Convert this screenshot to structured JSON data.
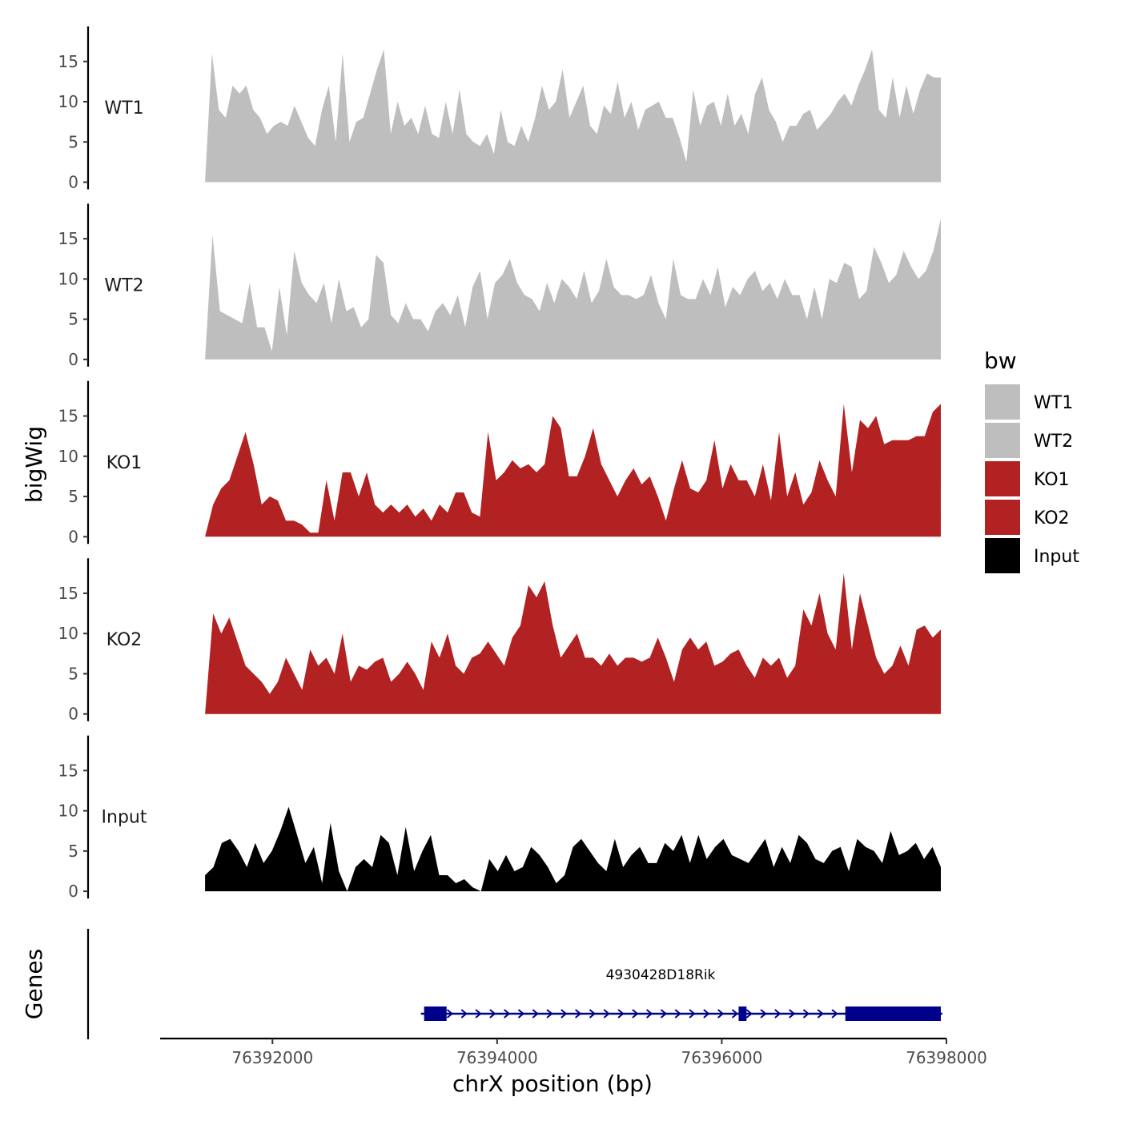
{
  "chart_data": {
    "type": "area",
    "ylabel": "bigWig",
    "xlabel": "chrX position (bp)",
    "genes_label": "Genes",
    "legend_title": "bw",
    "ylim": [
      0,
      19
    ],
    "y_ticks": [
      0,
      5,
      10,
      15
    ],
    "y_tick_labels": [
      "0",
      "5",
      "10",
      "15"
    ],
    "x_range": [
      76391000,
      76398000
    ],
    "data_x_range": [
      76391400,
      76397950
    ],
    "x_ticks": [
      76392000,
      76394000,
      76396000,
      76398000
    ],
    "x_tick_labels": [
      "76392000",
      "76394000",
      "76396000",
      "76398000"
    ],
    "series": [
      {
        "name": "WT1",
        "label": "WT1",
        "color": "#BEBEBE",
        "values": [
          0,
          16,
          9,
          8,
          12,
          11,
          12,
          9,
          8,
          6,
          7,
          7.5,
          7,
          9.5,
          7.5,
          5.5,
          4.5,
          9,
          12,
          5,
          16,
          5,
          7.5,
          8,
          11,
          14,
          16.5,
          6,
          10,
          7,
          8,
          6,
          9.5,
          6,
          5.5,
          10,
          6,
          11.5,
          6,
          5,
          4.5,
          6,
          3.5,
          9,
          5,
          4.5,
          7,
          5,
          8,
          12,
          9,
          10,
          14,
          8,
          10,
          12,
          7,
          6,
          9.5,
          8.5,
          12.5,
          8,
          10,
          6.5,
          9,
          9.5,
          10,
          8,
          8,
          5.5,
          2.5,
          11.5,
          7,
          9.5,
          10,
          7,
          11,
          7,
          8.5,
          6,
          11,
          13,
          9,
          7.5,
          5,
          7,
          7,
          8.5,
          9,
          6.5,
          7.5,
          8.5,
          10,
          11,
          9.5,
          12,
          14,
          16.5,
          9,
          8,
          13,
          8,
          12,
          8.5,
          11.5,
          13.5,
          13,
          13
        ]
      },
      {
        "name": "WT2",
        "label": "WT2",
        "color": "#BEBEBE",
        "values": [
          0,
          15.5,
          6,
          5.5,
          5,
          4.5,
          9.5,
          4,
          4,
          1,
          9,
          3,
          13.5,
          9.5,
          8,
          7,
          9.5,
          4.5,
          10,
          6,
          6.5,
          4,
          5,
          13,
          12,
          5.5,
          4.5,
          7,
          5,
          5,
          3.5,
          6,
          7,
          5.5,
          8,
          4,
          9,
          11,
          5,
          9.5,
          10.5,
          12.5,
          9.5,
          8,
          7.5,
          6,
          9.5,
          7,
          10,
          9,
          7.5,
          11,
          7,
          8.5,
          12.5,
          9,
          8,
          8,
          7.5,
          8,
          10.5,
          7,
          5,
          12.5,
          8,
          7.5,
          7.5,
          10,
          8,
          11.5,
          6.5,
          9,
          8,
          10,
          11,
          8.5,
          9.5,
          7.5,
          10,
          8,
          8,
          5,
          9,
          5,
          10,
          9.5,
          12,
          11.5,
          7.5,
          8.5,
          14,
          12,
          9.5,
          10.5,
          13.5,
          11.5,
          10,
          11,
          13.5,
          17.5
        ]
      },
      {
        "name": "KO1",
        "label": "KO1",
        "color": "#B22222",
        "values": [
          0,
          4,
          6,
          7,
          10,
          13,
          9,
          4,
          5,
          4.5,
          2,
          2,
          1.5,
          0.5,
          0.5,
          7,
          2,
          8,
          8,
          5,
          8,
          4,
          3,
          4,
          3,
          4,
          2.5,
          3.5,
          2,
          4,
          3,
          5.5,
          5.5,
          3,
          2.5,
          13,
          7,
          8,
          9.5,
          8.5,
          9,
          8,
          9,
          15,
          13.5,
          7.5,
          7.5,
          10,
          13.5,
          9,
          7,
          5,
          7,
          8.5,
          6.5,
          7.5,
          5,
          2,
          6,
          9.5,
          6,
          5.5,
          7,
          12,
          6,
          9,
          7,
          7,
          5,
          9,
          4.5,
          13,
          5,
          8,
          4,
          5.5,
          9.5,
          7,
          5,
          16.5,
          8,
          14.5,
          13.5,
          15,
          11.5,
          12,
          12,
          12,
          12.5,
          12.5,
          15.5,
          16.5
        ]
      },
      {
        "name": "KO2",
        "label": "KO2",
        "color": "#B22222",
        "values": [
          0,
          12.5,
          10,
          12,
          9,
          6,
          5,
          4,
          2.5,
          4,
          7,
          5,
          3,
          8,
          6,
          7,
          5,
          10,
          4,
          6,
          5.5,
          6.5,
          7,
          4,
          5,
          6.5,
          5,
          3,
          9,
          7,
          10,
          6,
          5,
          7,
          7.5,
          9,
          7.5,
          6,
          9.5,
          11,
          16,
          14.5,
          16.5,
          11,
          7,
          8.5,
          10,
          7,
          7,
          6,
          7.5,
          6,
          7,
          7,
          6.5,
          7,
          9.5,
          7,
          4,
          8,
          9.5,
          8,
          9,
          6,
          6.5,
          7.5,
          8,
          6,
          4.5,
          7,
          6,
          7,
          4.5,
          6,
          13,
          11,
          15,
          10,
          8,
          17.5,
          8,
          15,
          11,
          7,
          5,
          6,
          8.5,
          6,
          10.5,
          11,
          9.5,
          10.5
        ]
      },
      {
        "name": "Input",
        "label": "Input",
        "color": "#000000",
        "values": [
          2,
          3,
          6,
          6.5,
          5,
          3,
          6,
          3.5,
          5,
          7.5,
          10.5,
          7,
          3.5,
          5.5,
          1,
          8.5,
          2.5,
          0,
          3,
          4,
          3,
          7,
          6,
          2,
          8,
          2.5,
          5,
          7,
          2,
          2,
          1,
          1.5,
          0.5,
          0,
          4,
          2.5,
          4.5,
          2.5,
          3,
          5.5,
          4.5,
          3,
          1,
          2,
          5.5,
          6.5,
          5,
          3.5,
          2.5,
          6.5,
          3,
          4.5,
          5.5,
          3.5,
          3.5,
          6,
          5,
          7,
          3.5,
          7,
          4,
          5.5,
          6.5,
          4.5,
          4,
          3.5,
          5,
          6.5,
          3,
          5.5,
          3.5,
          7,
          6,
          4,
          3.5,
          5,
          5.5,
          2.5,
          6.5,
          5.5,
          5,
          3.5,
          7.5,
          4.5,
          5,
          6,
          4,
          5.5,
          3
        ]
      }
    ],
    "gene": {
      "name": "4930428D18Rik",
      "color": "#00008B",
      "start": 76393350,
      "end": 76397950,
      "exons": [
        [
          76393350,
          76393550
        ],
        [
          76396150,
          76396220
        ],
        [
          76397100,
          76397950
        ]
      ],
      "strand": "+"
    }
  }
}
